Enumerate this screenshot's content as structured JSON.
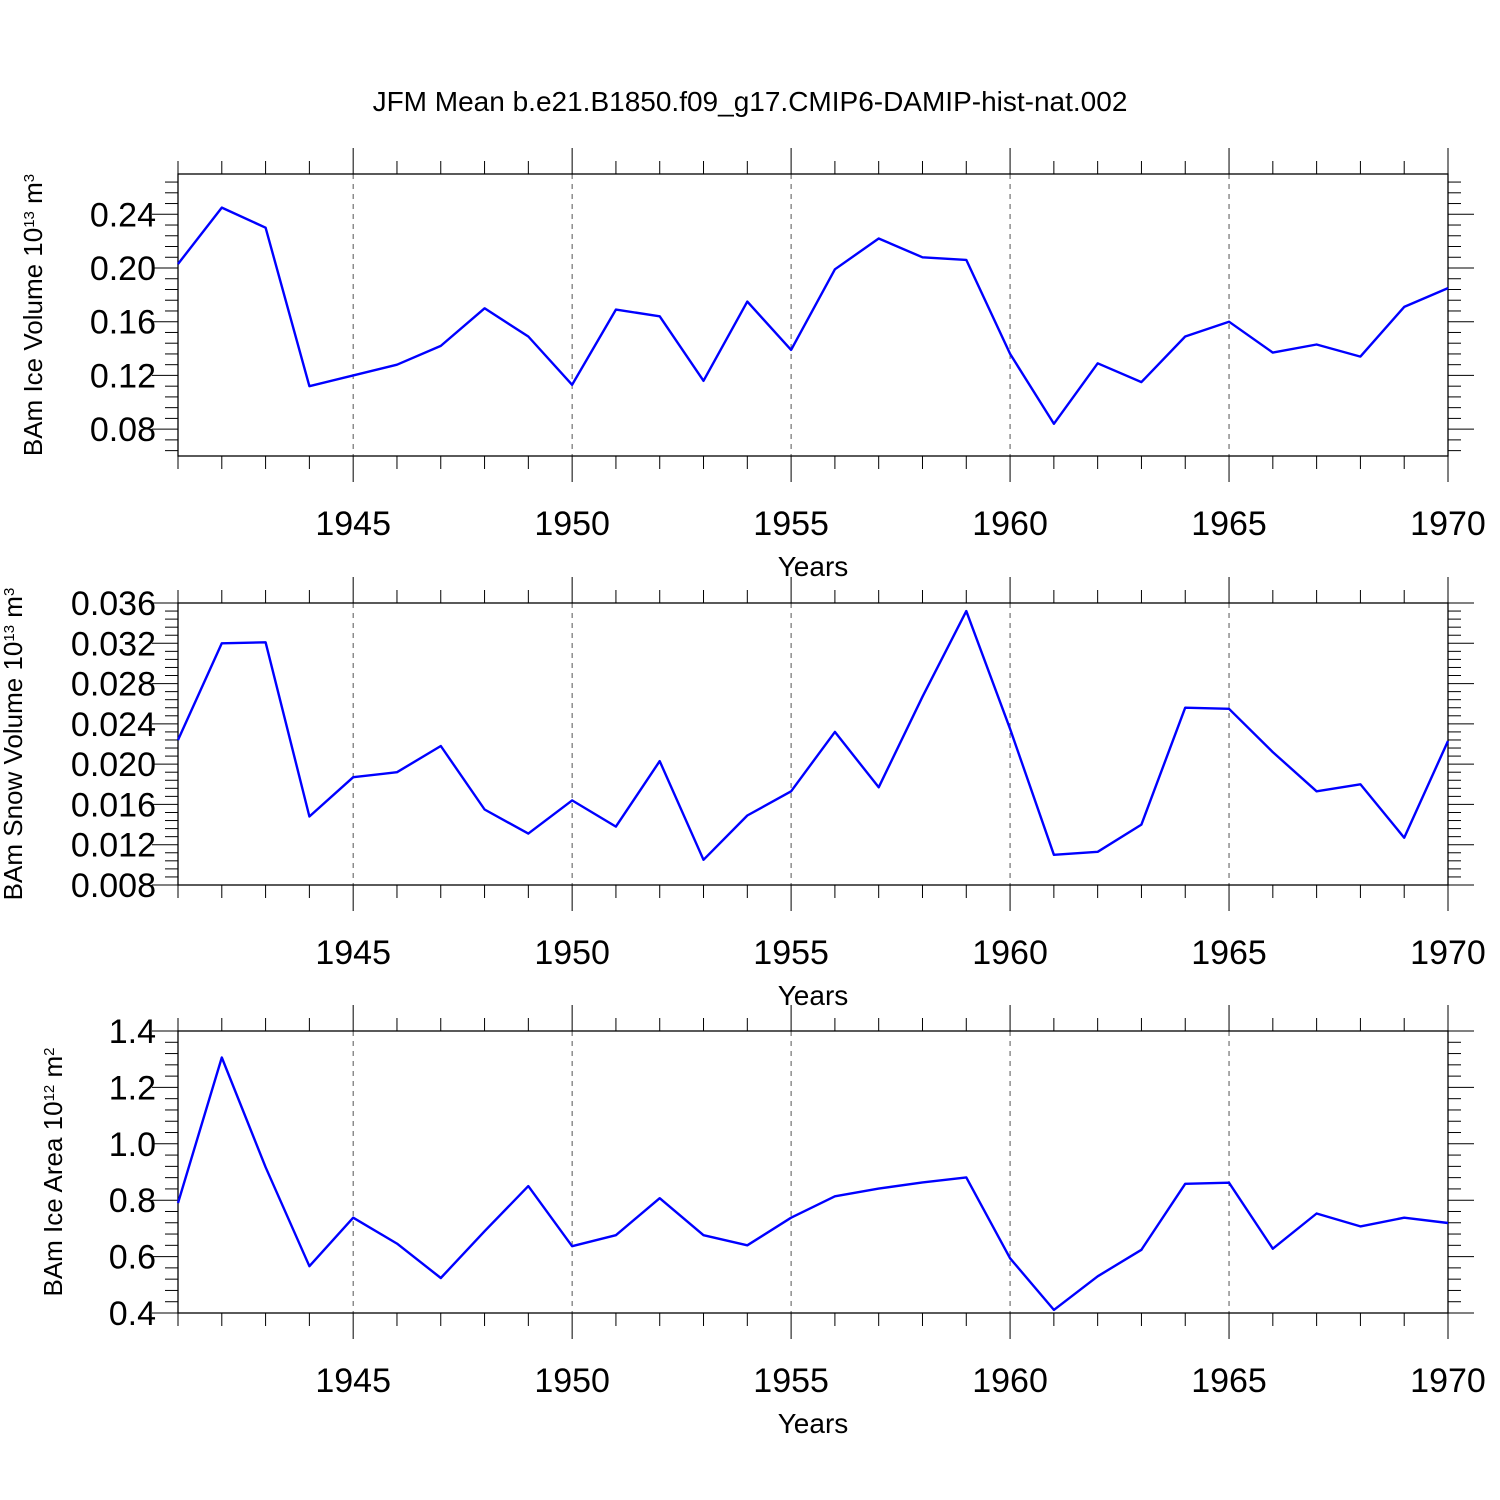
{
  "title": "JFM Mean b.e21.B1850.f09_g17.CMIP6-DAMIP-hist-nat.002",
  "colors": {
    "line": "#0000ff",
    "axis": "#000000",
    "grid": "#555555",
    "background": "#ffffff"
  },
  "chart_data": [
    {
      "type": "line",
      "ylabel": {
        "base": "BAm Ice Volume 10",
        "exp": "13",
        "unit": " m",
        "unit_exp": "3"
      },
      "xlabel": "Years",
      "xlim": [
        1941,
        1970
      ],
      "ylim": [
        0.06,
        0.27
      ],
      "yticks": [
        "0.08",
        "0.12",
        "0.16",
        "0.20",
        "0.24"
      ],
      "xticks": [
        "1945",
        "1950",
        "1955",
        "1960",
        "1965",
        "1970"
      ],
      "grid": "vertical-dashed",
      "x": [
        1941,
        1942,
        1943,
        1944,
        1945,
        1946,
        1947,
        1948,
        1949,
        1950,
        1951,
        1952,
        1953,
        1954,
        1955,
        1956,
        1957,
        1958,
        1959,
        1960,
        1961,
        1962,
        1963,
        1964,
        1965,
        1966,
        1967,
        1968,
        1969,
        1970
      ],
      "values": [
        0.203,
        0.245,
        0.23,
        0.112,
        0.12,
        0.128,
        0.142,
        0.17,
        0.149,
        0.113,
        0.169,
        0.164,
        0.116,
        0.175,
        0.139,
        0.199,
        0.222,
        0.208,
        0.206,
        0.136,
        0.084,
        0.129,
        0.115,
        0.149,
        0.16,
        0.137,
        0.143,
        0.134,
        0.171,
        0.185
      ]
    },
    {
      "type": "line",
      "ylabel": {
        "base": "BAm Snow Volume 10",
        "exp": "13",
        "unit": " m",
        "unit_exp": "3"
      },
      "xlabel": "Years",
      "xlim": [
        1941,
        1970
      ],
      "ylim": [
        0.008,
        0.036
      ],
      "yticks": [
        "0.008",
        "0.012",
        "0.016",
        "0.020",
        "0.024",
        "0.028",
        "0.032",
        "0.036"
      ],
      "xticks": [
        "1945",
        "1950",
        "1955",
        "1960",
        "1965",
        "1970"
      ],
      "grid": "vertical-dashed",
      "x": [
        1941,
        1942,
        1943,
        1944,
        1945,
        1946,
        1947,
        1948,
        1949,
        1950,
        1951,
        1952,
        1953,
        1954,
        1955,
        1956,
        1957,
        1958,
        1959,
        1960,
        1961,
        1962,
        1963,
        1964,
        1965,
        1966,
        1967,
        1968,
        1969,
        1970
      ],
      "values": [
        0.0224,
        0.032,
        0.0321,
        0.0148,
        0.0187,
        0.0192,
        0.0218,
        0.0155,
        0.0131,
        0.0164,
        0.0138,
        0.0203,
        0.0105,
        0.0149,
        0.0173,
        0.0232,
        0.0177,
        0.0267,
        0.0352,
        0.0235,
        0.011,
        0.0113,
        0.014,
        0.0256,
        0.0255,
        0.0212,
        0.0173,
        0.018,
        0.0127,
        0.0223
      ]
    },
    {
      "type": "line",
      "ylabel": {
        "base": "BAm Ice Area 10",
        "exp": "12",
        "unit": " m",
        "unit_exp": "2"
      },
      "xlabel": "Years",
      "xlim": [
        1941,
        1970
      ],
      "ylim": [
        0.4,
        1.4
      ],
      "yticks": [
        "0.4",
        "0.6",
        "0.8",
        "1.0",
        "1.2",
        "1.4"
      ],
      "xticks": [
        "1945",
        "1950",
        "1955",
        "1960",
        "1965",
        "1970"
      ],
      "grid": "vertical-dashed",
      "x": [
        1941,
        1942,
        1943,
        1944,
        1945,
        1946,
        1947,
        1948,
        1949,
        1950,
        1951,
        1952,
        1953,
        1954,
        1955,
        1956,
        1957,
        1958,
        1959,
        1960,
        1961,
        1962,
        1963,
        1964,
        1965,
        1966,
        1967,
        1968,
        1969,
        1970
      ],
      "values": [
        0.79,
        1.306,
        0.917,
        0.566,
        0.738,
        0.646,
        0.524,
        0.69,
        0.85,
        0.637,
        0.676,
        0.807,
        0.676,
        0.64,
        0.738,
        0.814,
        0.841,
        0.863,
        0.881,
        0.594,
        0.411,
        0.53,
        0.624,
        0.858,
        0.862,
        0.628,
        0.753,
        0.707,
        0.738,
        0.719
      ]
    }
  ]
}
